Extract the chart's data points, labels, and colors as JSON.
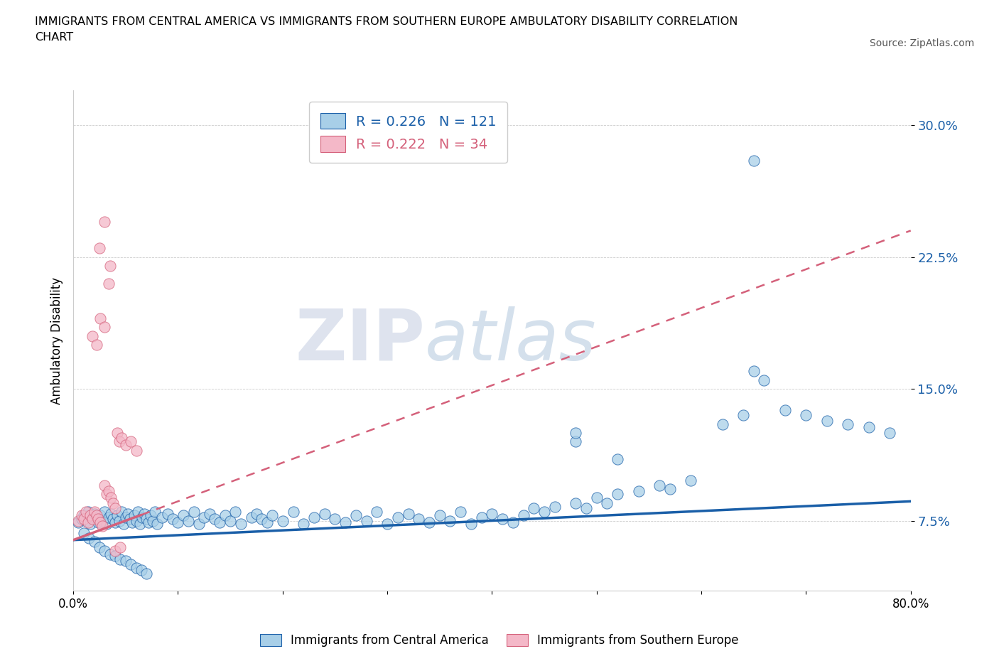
{
  "title": "IMMIGRANTS FROM CENTRAL AMERICA VS IMMIGRANTS FROM SOUTHERN EUROPE AMBULATORY DISABILITY CORRELATION\nCHART",
  "source": "Source: ZipAtlas.com",
  "ylabel": "Ambulatory Disability",
  "r_blue": 0.226,
  "n_blue": 121,
  "r_pink": 0.222,
  "n_pink": 34,
  "blue_color": "#a8cfe8",
  "pink_color": "#f4b8c8",
  "blue_line_color": "#1a5fa8",
  "pink_line_color": "#d4607a",
  "xlim": [
    0.0,
    0.8
  ],
  "ylim": [
    0.035,
    0.32
  ],
  "yticks": [
    0.075,
    0.15,
    0.225,
    0.3
  ],
  "ytick_labels": [
    "7.5%",
    "15.0%",
    "22.5%",
    "30.0%"
  ],
  "xticks": [
    0.0,
    0.1,
    0.2,
    0.3,
    0.4,
    0.5,
    0.6,
    0.7,
    0.8
  ],
  "xtick_labels": [
    "0.0%",
    "",
    "",
    "",
    "",
    "",
    "",
    "",
    "80.0%"
  ],
  "watermark_zip": "ZIP",
  "watermark_atlas": "atlas",
  "blue_scatter_x": [
    0.005,
    0.008,
    0.01,
    0.012,
    0.014,
    0.016,
    0.018,
    0.02,
    0.022,
    0.024,
    0.026,
    0.028,
    0.03,
    0.032,
    0.034,
    0.036,
    0.038,
    0.04,
    0.042,
    0.044,
    0.046,
    0.048,
    0.05,
    0.052,
    0.054,
    0.056,
    0.058,
    0.06,
    0.062,
    0.064,
    0.066,
    0.068,
    0.07,
    0.072,
    0.074,
    0.076,
    0.078,
    0.08,
    0.085,
    0.09,
    0.095,
    0.1,
    0.105,
    0.11,
    0.115,
    0.12,
    0.125,
    0.13,
    0.135,
    0.14,
    0.145,
    0.15,
    0.155,
    0.16,
    0.17,
    0.175,
    0.18,
    0.185,
    0.19,
    0.2,
    0.21,
    0.22,
    0.23,
    0.24,
    0.25,
    0.26,
    0.27,
    0.28,
    0.29,
    0.3,
    0.31,
    0.32,
    0.33,
    0.34,
    0.35,
    0.36,
    0.37,
    0.38,
    0.39,
    0.4,
    0.41,
    0.42,
    0.43,
    0.44,
    0.45,
    0.46,
    0.48,
    0.49,
    0.5,
    0.51,
    0.52,
    0.54,
    0.56,
    0.57,
    0.59,
    0.62,
    0.64,
    0.65,
    0.66,
    0.68,
    0.7,
    0.72,
    0.74,
    0.76,
    0.78,
    0.01,
    0.015,
    0.02,
    0.025,
    0.03,
    0.035,
    0.04,
    0.045,
    0.05,
    0.055,
    0.06,
    0.065,
    0.07,
    0.48,
    0.52,
    0.48,
    0.65
  ],
  "blue_scatter_y": [
    0.074,
    0.076,
    0.078,
    0.075,
    0.08,
    0.073,
    0.077,
    0.079,
    0.076,
    0.074,
    0.078,
    0.075,
    0.08,
    0.073,
    0.077,
    0.079,
    0.076,
    0.074,
    0.078,
    0.075,
    0.08,
    0.073,
    0.077,
    0.079,
    0.076,
    0.074,
    0.078,
    0.075,
    0.08,
    0.073,
    0.077,
    0.079,
    0.076,
    0.074,
    0.078,
    0.075,
    0.08,
    0.073,
    0.077,
    0.079,
    0.076,
    0.074,
    0.078,
    0.075,
    0.08,
    0.073,
    0.077,
    0.079,
    0.076,
    0.074,
    0.078,
    0.075,
    0.08,
    0.073,
    0.077,
    0.079,
    0.076,
    0.074,
    0.078,
    0.075,
    0.08,
    0.073,
    0.077,
    0.079,
    0.076,
    0.074,
    0.078,
    0.075,
    0.08,
    0.073,
    0.077,
    0.079,
    0.076,
    0.074,
    0.078,
    0.075,
    0.08,
    0.073,
    0.077,
    0.079,
    0.076,
    0.074,
    0.078,
    0.082,
    0.08,
    0.083,
    0.085,
    0.082,
    0.088,
    0.085,
    0.09,
    0.092,
    0.095,
    0.093,
    0.098,
    0.13,
    0.135,
    0.16,
    0.155,
    0.138,
    0.135,
    0.132,
    0.13,
    0.128,
    0.125,
    0.068,
    0.065,
    0.063,
    0.06,
    0.058,
    0.056,
    0.055,
    0.053,
    0.052,
    0.05,
    0.048,
    0.047,
    0.045,
    0.12,
    0.11,
    0.125,
    0.28
  ],
  "pink_scatter_x": [
    0.005,
    0.008,
    0.01,
    0.012,
    0.014,
    0.016,
    0.018,
    0.02,
    0.022,
    0.024,
    0.026,
    0.028,
    0.03,
    0.032,
    0.034,
    0.036,
    0.038,
    0.04,
    0.042,
    0.044,
    0.046,
    0.05,
    0.055,
    0.06,
    0.018,
    0.022,
    0.026,
    0.03,
    0.034,
    0.025,
    0.03,
    0.035,
    0.04,
    0.045
  ],
  "pink_scatter_y": [
    0.075,
    0.078,
    0.076,
    0.08,
    0.074,
    0.078,
    0.076,
    0.08,
    0.078,
    0.076,
    0.074,
    0.072,
    0.095,
    0.09,
    0.092,
    0.088,
    0.085,
    0.082,
    0.125,
    0.12,
    0.122,
    0.118,
    0.12,
    0.115,
    0.18,
    0.175,
    0.19,
    0.185,
    0.21,
    0.23,
    0.245,
    0.22,
    0.058,
    0.06
  ],
  "blue_trendline_x": [
    0.0,
    0.8
  ],
  "blue_trendline_y": [
    0.064,
    0.086
  ],
  "pink_trendline_x": [
    0.0,
    0.8
  ],
  "pink_trendline_y": [
    0.064,
    0.24
  ]
}
